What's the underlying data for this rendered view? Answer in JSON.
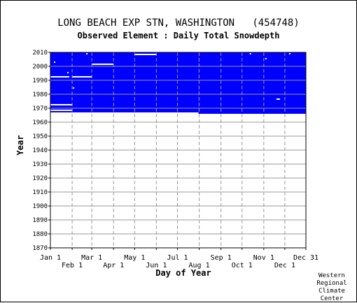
{
  "chart_data": {
    "type": "heatmap",
    "title": "LONG BEACH EXP STN, WASHINGTON   (454748)",
    "subtitle": "Observed Element : Daily Total Snowdepth",
    "xlabel": "Day of Year",
    "ylabel": "Year",
    "ylim": [
      1870,
      2010
    ],
    "xlim": [
      1,
      365
    ],
    "x_ticks_upper": [
      {
        "label": "Jan 1",
        "day": 1
      },
      {
        "label": "Mar 1",
        "day": 60
      },
      {
        "label": "May 1",
        "day": 121
      },
      {
        "label": "Jul 1",
        "day": 182
      },
      {
        "label": "Sep 1",
        "day": 244
      },
      {
        "label": "Nov 1",
        "day": 305
      },
      {
        "label": "Dec 31",
        "day": 365
      }
    ],
    "x_ticks_lower": [
      {
        "label": "Feb 1",
        "day": 32
      },
      {
        "label": "Apr 1",
        "day": 91
      },
      {
        "label": "Jun 1",
        "day": 152
      },
      {
        "label": "Aug 1",
        "day": 213
      },
      {
        "label": "Oct 1",
        "day": 274
      },
      {
        "label": "Dec 1",
        "day": 335
      }
    ],
    "y_ticks": [
      "1870",
      "1880",
      "1890",
      "1900",
      "1910",
      "1920",
      "1930",
      "1940",
      "1950",
      "1960",
      "1970",
      "1980",
      "1990",
      "2000",
      "2010"
    ],
    "grid": true,
    "fill_color": "#0000ff",
    "missing_color": "#ffffff",
    "coverage": [
      {
        "year_start": 1967.0,
        "year_end": 2010.0,
        "day_start": 1,
        "day_end": 212
      },
      {
        "year_start": 1966.0,
        "year_end": 2010.0,
        "day_start": 212,
        "day_end": 365
      }
    ],
    "gaps": [
      {
        "year": 1968.5,
        "day_start": 1,
        "day_end": 32
      },
      {
        "year": 1972.5,
        "day_start": 1,
        "day_end": 32
      },
      {
        "year": 1992.5,
        "day_start": 1,
        "day_end": 28
      },
      {
        "year": 1992.5,
        "day_start": 32,
        "day_end": 60
      },
      {
        "year": 2001.5,
        "day_start": 60,
        "day_end": 91
      },
      {
        "year": 2008.5,
        "day_start": 121,
        "day_end": 152
      },
      {
        "year": 2003.0,
        "day_start": 6,
        "day_end": 8
      },
      {
        "year": 1995.5,
        "day_start": 25,
        "day_end": 27
      },
      {
        "year": 1984.5,
        "day_start": 33,
        "day_end": 35
      },
      {
        "year": 2009.0,
        "day_start": 52,
        "day_end": 54
      },
      {
        "year": 2009.0,
        "day_start": 285,
        "day_end": 287
      },
      {
        "year": 2005.5,
        "day_start": 307,
        "day_end": 309
      },
      {
        "year": 1976.5,
        "day_start": 323,
        "day_end": 328
      },
      {
        "year": 2009.0,
        "day_start": 341,
        "day_end": 343
      }
    ]
  },
  "footer": {
    "credit_lines": [
      "Western",
      "Regional",
      "Climate",
      "Center"
    ]
  }
}
